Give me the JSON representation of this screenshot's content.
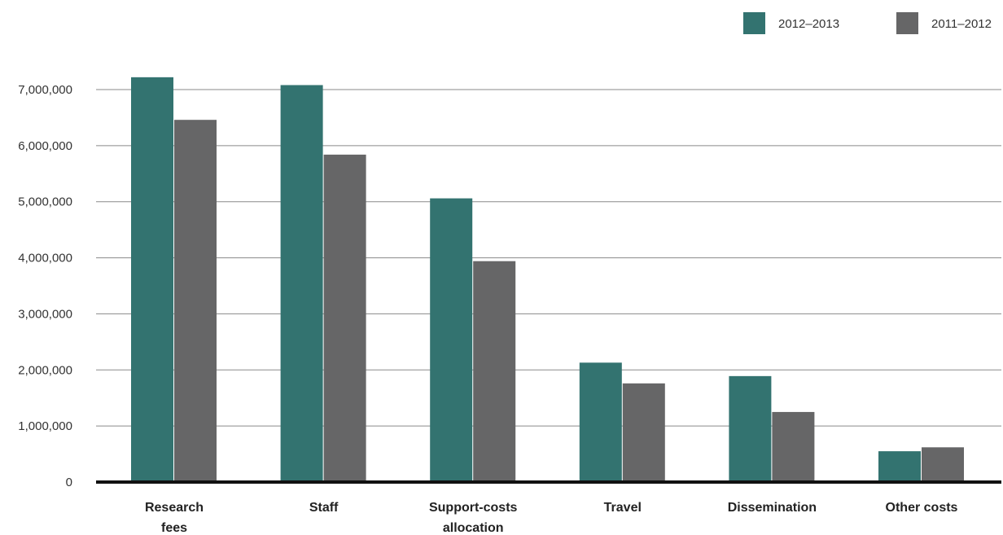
{
  "chart_data": {
    "type": "bar",
    "categories": [
      [
        "Research",
        "fees"
      ],
      [
        "Staff"
      ],
      [
        "Support-costs",
        "allocation"
      ],
      [
        "Travel"
      ],
      [
        "Dissemination"
      ],
      [
        "Other costs"
      ]
    ],
    "series": [
      {
        "name": "2012–2013",
        "color": "#337370",
        "values": [
          7220000,
          7080000,
          5060000,
          2130000,
          1890000,
          550000
        ]
      },
      {
        "name": "2011–2012",
        "color": "#666667",
        "values": [
          6460000,
          5840000,
          3940000,
          1760000,
          1250000,
          620000
        ]
      }
    ],
    "yticks": [
      "0",
      "1,000,000",
      "2,000,000",
      "3,000,000",
      "4,000,000",
      "5,000,000",
      "6,000,000",
      "7,000,000"
    ],
    "ylim": [
      0,
      7000000
    ],
    "grid": true,
    "legend_position": "top-right",
    "title": "",
    "xlabel": "",
    "ylabel": ""
  }
}
